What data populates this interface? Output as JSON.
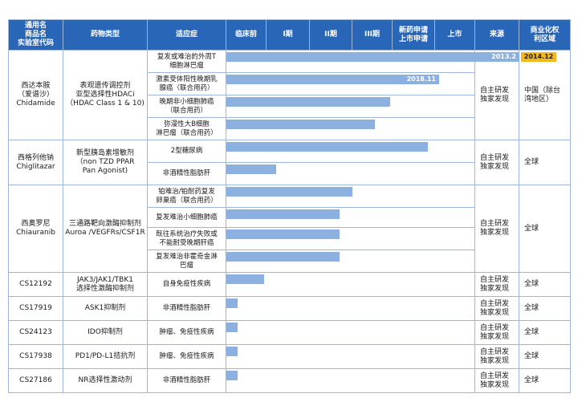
{
  "headers": {
    "name": "通用名\n商品名\n实验室代码",
    "type": "药物类型",
    "indication": "适应症",
    "preclinical": "临床前",
    "phase1": "I期",
    "phase2": "II期",
    "phase3": "III期",
    "nda": "新药申请\n上市申请",
    "market": "上市",
    "source": "来源",
    "rights": "商业化权\n利区域"
  },
  "drugs": [
    {
      "name": "西达本胺\n（爱谱沙）\nChidamide",
      "type": "表观遗传调控剂\n亚型选择性HDACi\n（HDAC Class 1 & 10)",
      "source": "自主研发\n独家发现",
      "rights": "中国（除台\n湾地区）",
      "indications": [
        {
          "text": "复发或难治的外周T\n细胞淋巴瘤",
          "progress": 1.0,
          "label": "2013.2",
          "marker": "2014.12"
        },
        {
          "text": "激素受体阳性晚期乳\n腺癌（联合用药）",
          "progress": 0.727,
          "label": "2018.11"
        },
        {
          "text": "晚期非小细胞肺癌\n（联合用药）",
          "progress": 0.558
        },
        {
          "text": "弥漫性大B细胞\n淋巴瘤（联合用药）",
          "progress": 0.506
        }
      ]
    },
    {
      "name": "西格列他钠\nChiglitazar",
      "type": "新型胰岛素增敏剂\n（non TZD PPAR\nPan Agonist)",
      "source": "自主研发\n独家发现",
      "rights": "全球",
      "indications": [
        {
          "text": "2型糖尿病",
          "progress": 0.688
        },
        {
          "text": "非酒精性脂肪肝",
          "progress": 0.169
        }
      ]
    },
    {
      "name": "西奥罗尼\nChiauranib",
      "type": "三通路靶向激酶抑制剂\nAuroa /VEGFRs/CSF1R",
      "source": "自主研发\n独家发现",
      "rights": "全球",
      "indications": [
        {
          "text": "铂难治/铂耐药复发\n卵巢癌（联合用药）",
          "progress": 0.429
        },
        {
          "text": "复发难治小细胞肺癌",
          "progress": 0.386
        },
        {
          "text": "既往系统治疗失败或\n不能耐受晚期肝癌",
          "progress": 0.386
        },
        {
          "text": "复发难治非霍奇金淋\n巴瘤",
          "progress": 0.386
        }
      ]
    },
    {
      "name": "CS12192",
      "type": "JAK3/JAK1/TBK1\n选择性激酶抑制剂",
      "source": "自主研发\n独家发现",
      "rights": "全球",
      "indications": [
        {
          "text": "自身免疫性疾病",
          "progress": 0.13
        }
      ]
    },
    {
      "name": "CS17919",
      "type": "ASK1抑制剂",
      "source": "自主研发\n独家发现",
      "rights": "全球",
      "indications": [
        {
          "text": "非酒精性脂肪肝",
          "progress": 0.039
        }
      ]
    },
    {
      "name": "CS24123",
      "type": "IDO抑制剂",
      "source": "自主研发\n独家发现",
      "rights": "全球",
      "indications": [
        {
          "text": "肿瘤、免疫性疾病",
          "progress": 0.039
        }
      ]
    },
    {
      "name": "CS17938",
      "type": "PD1/PD-L1拮抗剂",
      "source": "自主研发\n独家发现",
      "rights": "全球",
      "indications": [
        {
          "text": "肿瘤、免疫性疾病",
          "progress": 0.039
        }
      ]
    },
    {
      "name": "CS27186",
      "type": "NR选择性激动剂",
      "source": "自主研发\n独家发现",
      "rights": "全球",
      "indications": [
        {
          "text": "非酒精性脂肪肝",
          "progress": 0.039
        }
      ]
    }
  ],
  "colors": {
    "header_bg": "#2a66b8",
    "bar": "#8cb0e0",
    "marker": "#f2b81c",
    "border": "#9fb6d8"
  }
}
